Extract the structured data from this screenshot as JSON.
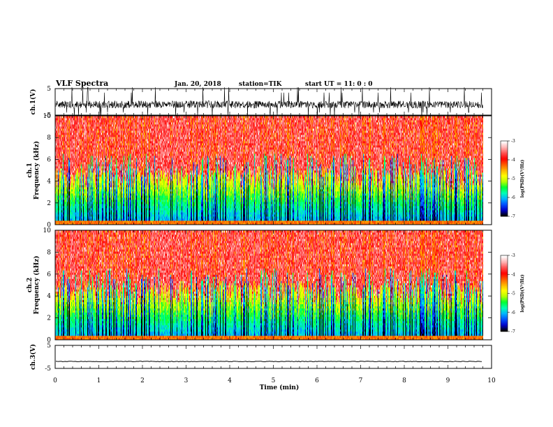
{
  "header": {
    "title": "VLF Spectra",
    "date": "Jan. 20, 2018",
    "station": "station=TIK",
    "start": "start UT =  11: 0  : 0"
  },
  "chart_data": [
    {
      "id": "waveform-ch1",
      "type": "line",
      "ylabel": "ch.1(V)",
      "ylim": [
        -5,
        5
      ],
      "yticks": [
        "5",
        "-5"
      ],
      "xlim": [
        0,
        10
      ],
      "description": "raw waveform, noisy around -1 V with spikes to the limits",
      "grid": false
    },
    {
      "id": "spectrogram-ch1",
      "type": "heatmap",
      "ylabel": "ch.1\nFrequency (kHz)",
      "ylim": [
        0,
        10
      ],
      "yticks": [
        "0",
        "2",
        "4",
        "6",
        "8",
        "10"
      ],
      "xlim": [
        0,
        10
      ],
      "colorbar": {
        "label": "log(PSD)(V²/Hz)",
        "range": [
          -7,
          -3
        ],
        "ticks": [
          "-7",
          "-6",
          "-5",
          "-4",
          "-3"
        ]
      }
    },
    {
      "id": "spectrogram-ch2",
      "type": "heatmap",
      "ylabel": "ch.2\nFrequency (kHz)",
      "ylim": [
        0,
        10
      ],
      "yticks": [
        "0",
        "2",
        "4",
        "6",
        "8",
        "10"
      ],
      "xlim": [
        0,
        10
      ],
      "colorbar": {
        "label": "log(PSD)(V²/Hz)",
        "range": [
          -7,
          -3
        ],
        "ticks": [
          "-7",
          "-6",
          "-5",
          "-4",
          "-3"
        ]
      }
    },
    {
      "id": "waveform-ch3",
      "type": "line",
      "ylabel": "ch.3(V)",
      "ylim": [
        -5,
        5
      ],
      "yticks": [
        "5",
        "-5"
      ],
      "xlim": [
        0,
        10
      ],
      "description": "flat line near -2 V",
      "level": -2,
      "grid": false
    }
  ],
  "xaxis": {
    "label": "Time (min)",
    "range": [
      0,
      10
    ],
    "ticks": [
      "0",
      "1",
      "2",
      "3",
      "4",
      "5",
      "6",
      "7",
      "8",
      "9",
      "10"
    ],
    "data_end": 9.8
  },
  "colors": {
    "colormap": [
      "#000000",
      "#0000c8",
      "#0050ff",
      "#00b4ff",
      "#00ffb4",
      "#00ff32",
      "#b4ff00",
      "#ffff00",
      "#ffb400",
      "#ff5a00",
      "#ff0000",
      "#ff5050",
      "#ffb4b4",
      "#ffffff"
    ]
  }
}
